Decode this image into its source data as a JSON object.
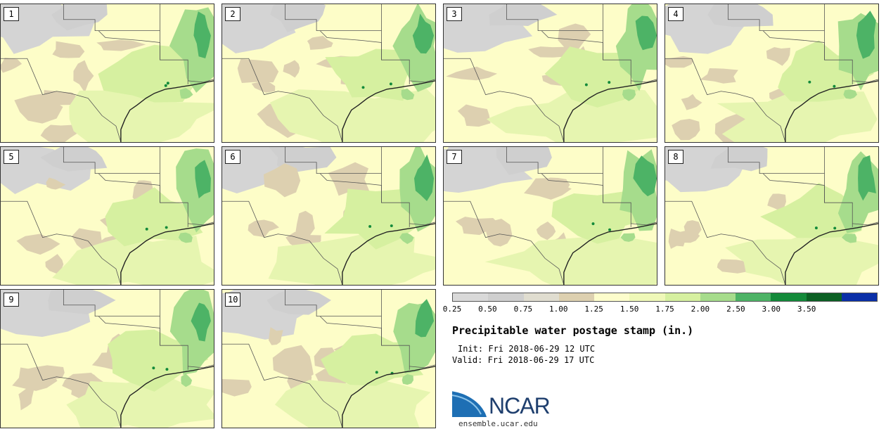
{
  "panels": [
    {
      "label": "1"
    },
    {
      "label": "2"
    },
    {
      "label": "3"
    },
    {
      "label": "4"
    },
    {
      "label": "5"
    },
    {
      "label": "6"
    },
    {
      "label": "7"
    },
    {
      "label": "8"
    },
    {
      "label": "9"
    },
    {
      "label": "10"
    }
  ],
  "legend": {
    "colors": [
      "#d9d9d9",
      "#cfcfcf",
      "#e0ddd0",
      "#ddd0b0",
      "#fdfdcc",
      "#eff8b8",
      "#d6f0a0",
      "#a6dc8c",
      "#4db366",
      "#138a3a",
      "#0b6024",
      "#0a2fa8"
    ],
    "ticks": [
      "0.25",
      "0.50",
      "0.75",
      "1.00",
      "1.25",
      "1.50",
      "1.75",
      "2.00",
      "2.50",
      "3.00",
      "3.50"
    ]
  },
  "info": {
    "title": "Precipitable water postage stamp (in.)",
    "init": "Init: Fri 2018-06-29 12 UTC",
    "valid": "Valid: Fri 2018-06-29 17 UTC"
  },
  "logo": {
    "name": "NCAR",
    "website": "ensemble.ucar.edu"
  }
}
